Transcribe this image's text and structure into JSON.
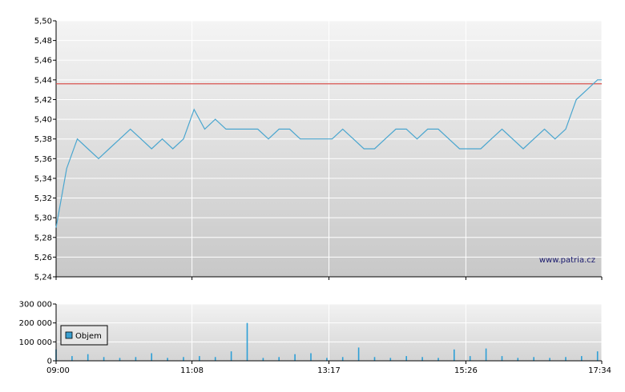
{
  "watermark": "www.patria.cz",
  "legend_label": "Objem",
  "colors": {
    "price_line": "#4aa6cf",
    "reference_line": "#d9534f",
    "volume_bar": "#2d9fd6",
    "legend_swatch": "#3a9fd0"
  },
  "chart_data": [
    {
      "type": "line",
      "ylim": [
        5.24,
        5.5
      ],
      "y_ticks": [
        "5,24",
        "5,26",
        "5,28",
        "5,30",
        "5,32",
        "5,34",
        "5,36",
        "5,38",
        "5,40",
        "5,42",
        "5,44",
        "5,46",
        "5,48",
        "5,50"
      ],
      "reference_value": 5.436,
      "x_labels": [
        "09:00",
        "11:08",
        "13:17",
        "15:26",
        "17:34"
      ],
      "x": [
        "09:00",
        "09:10",
        "09:20",
        "09:30",
        "09:40",
        "09:50",
        "10:00",
        "10:10",
        "10:20",
        "10:30",
        "10:40",
        "10:50",
        "11:00",
        "11:10",
        "11:20",
        "11:30",
        "11:40",
        "11:50",
        "12:00",
        "12:10",
        "12:20",
        "12:30",
        "12:40",
        "12:50",
        "13:00",
        "13:10",
        "13:20",
        "13:30",
        "13:40",
        "13:50",
        "14:00",
        "14:10",
        "14:20",
        "14:30",
        "14:40",
        "14:50",
        "15:00",
        "15:10",
        "15:20",
        "15:30",
        "15:40",
        "15:50",
        "16:00",
        "16:10",
        "16:20",
        "16:30",
        "16:40",
        "16:50",
        "17:00",
        "17:10",
        "17:20",
        "17:30",
        "17:34"
      ],
      "values": [
        5.29,
        5.35,
        5.38,
        5.37,
        5.36,
        5.37,
        5.38,
        5.39,
        5.38,
        5.37,
        5.38,
        5.37,
        5.38,
        5.41,
        5.39,
        5.4,
        5.39,
        5.39,
        5.39,
        5.39,
        5.38,
        5.39,
        5.39,
        5.38,
        5.38,
        5.38,
        5.38,
        5.39,
        5.38,
        5.37,
        5.37,
        5.38,
        5.39,
        5.39,
        5.38,
        5.39,
        5.39,
        5.38,
        5.37,
        5.37,
        5.37,
        5.38,
        5.39,
        5.38,
        5.37,
        5.38,
        5.39,
        5.38,
        5.39,
        5.42,
        5.43,
        5.44,
        5.44
      ]
    },
    {
      "type": "bar",
      "ylim": [
        0,
        300000
      ],
      "y_ticks": [
        "0",
        "100 000",
        "200 000",
        "300 000"
      ],
      "x_labels": [
        "09:00",
        "11:08",
        "13:17",
        "15:26",
        "17:34"
      ],
      "x": [
        "09:00",
        "09:15",
        "09:30",
        "09:45",
        "10:00",
        "10:15",
        "10:30",
        "10:45",
        "11:00",
        "11:15",
        "11:30",
        "11:45",
        "12:00",
        "12:15",
        "12:30",
        "12:45",
        "13:00",
        "13:15",
        "13:30",
        "13:45",
        "14:00",
        "14:15",
        "14:30",
        "14:45",
        "15:00",
        "15:15",
        "15:30",
        "15:45",
        "16:00",
        "16:15",
        "16:30",
        "16:45",
        "17:00",
        "17:15",
        "17:30"
      ],
      "values": [
        60000,
        25000,
        35000,
        20000,
        15000,
        20000,
        40000,
        15000,
        20000,
        25000,
        20000,
        50000,
        200000,
        15000,
        20000,
        35000,
        40000,
        15000,
        20000,
        70000,
        20000,
        15000,
        25000,
        20000,
        15000,
        60000,
        25000,
        65000,
        25000,
        15000,
        20000,
        15000,
        20000,
        25000,
        50000
      ]
    }
  ]
}
